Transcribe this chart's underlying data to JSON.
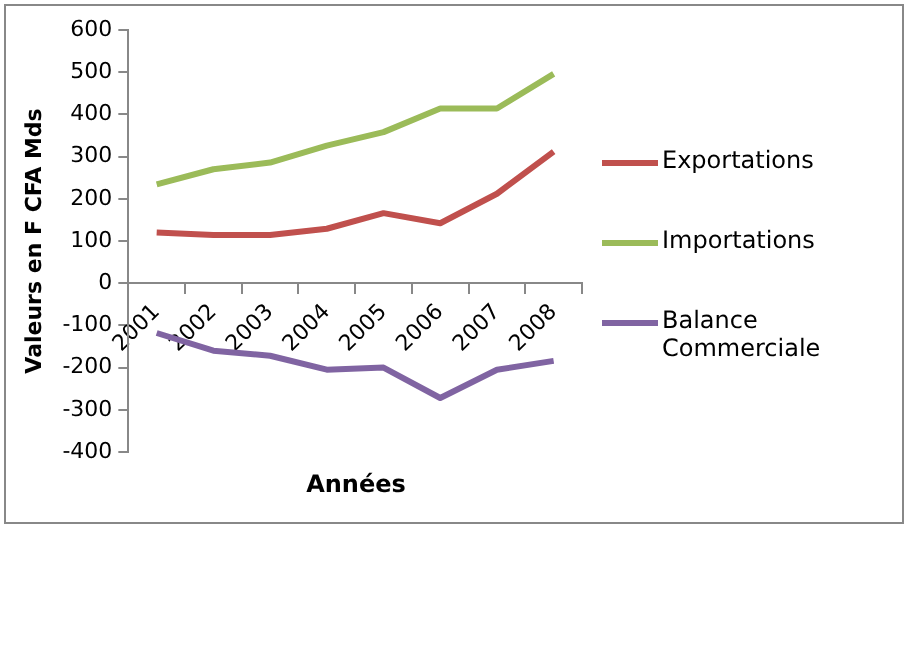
{
  "chart_data": {
    "type": "line",
    "xlabel": "Années",
    "ylabel": "Valeurs en F CFA Mds",
    "categories": [
      "2001",
      "2002",
      "2003",
      "2004",
      "2005",
      "2006",
      "2007",
      "2008"
    ],
    "series": [
      {
        "name": "Exportations",
        "color": "#c0504d",
        "values": [
          120,
          114,
          114,
          129,
          166,
          142,
          212,
          312
        ]
      },
      {
        "name": "Importations",
        "color": "#9bbb59",
        "values": [
          234,
          270,
          286,
          326,
          358,
          414,
          414,
          496
        ]
      },
      {
        "name": "Balance Commerciale",
        "color": "#8064a2",
        "values": [
          -118,
          -160,
          -172,
          -205,
          -200,
          -272,
          -205,
          -184
        ]
      }
    ],
    "ylim": [
      -400,
      600
    ],
    "yticks": [
      -400,
      -300,
      -200,
      -100,
      0,
      100,
      200,
      300,
      400,
      500,
      600
    ],
    "grid": false,
    "legend": "right",
    "marker": "none",
    "line_style": "solid"
  }
}
